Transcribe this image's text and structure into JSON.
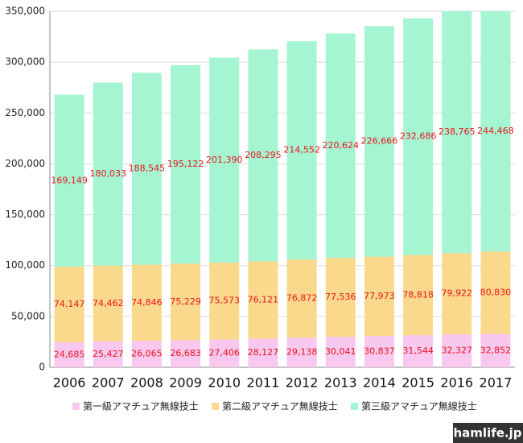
{
  "chart_data": {
    "type": "bar",
    "stacked": true,
    "categories": [
      "2006",
      "2007",
      "2008",
      "2009",
      "2010",
      "2011",
      "2012",
      "2013",
      "2014",
      "2015",
      "2016",
      "2017"
    ],
    "series": [
      {
        "name": "第一級アマチュア無線技士",
        "color": "#f9c8ef",
        "values": [
          24685,
          25427,
          26065,
          26683,
          27406,
          28127,
          29138,
          30041,
          30837,
          31544,
          32327,
          32852
        ],
        "value_labels": [
          "24,685",
          "25,427",
          "26,065",
          "26,683",
          "27,406",
          "28,127",
          "29,138",
          "30,041",
          "30,837",
          "31,544",
          "32,327",
          "32,852"
        ]
      },
      {
        "name": "第二級アマチュア無線技士",
        "color": "#fbd98c",
        "values": [
          74147,
          74462,
          74846,
          75229,
          75573,
          76121,
          76872,
          77536,
          77973,
          78818,
          79922,
          80830
        ],
        "value_labels": [
          "74,147",
          "74,462",
          "74,846",
          "75,229",
          "75,573",
          "76,121",
          "76,872",
          "77,536",
          "77,973",
          "78,818",
          "79,922",
          "80,830"
        ]
      },
      {
        "name": "第三級アマチュア無線技士",
        "color": "#a6f5d2",
        "values": [
          169149,
          180033,
          188545,
          195122,
          201390,
          208295,
          214552,
          220624,
          226666,
          232686,
          238765,
          244468
        ],
        "value_labels": [
          "169,149",
          "180,033",
          "188,545",
          "195,122",
          "201,390",
          "208,295",
          "214,552",
          "220,624",
          "226,666",
          "232,686",
          "238,765",
          "244,468"
        ]
      }
    ],
    "ylim": [
      0,
      350000
    ],
    "yticks": [
      0,
      {
        "value": 50000,
        "label": "50,000"
      },
      {
        "value": 100000,
        "label": "100,000"
      },
      {
        "value": 150000,
        "label": "150,000"
      },
      {
        "value": 200000,
        "label": "200,000"
      },
      {
        "value": 250000,
        "label": "250,000"
      },
      {
        "value": 300000,
        "label": "300,000"
      },
      {
        "value": 350000,
        "label": "350,000"
      }
    ],
    "grid": true,
    "legend": "bottom",
    "label_color": "#e8141b",
    "watermark": "hamlife.jp"
  }
}
